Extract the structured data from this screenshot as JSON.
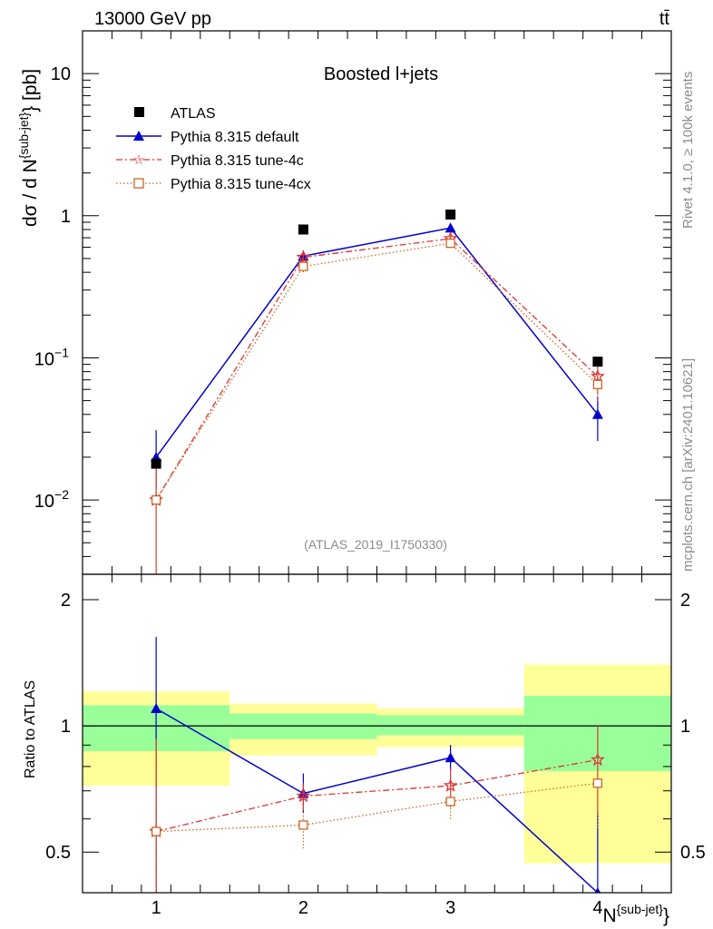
{
  "header": {
    "energy_label": "13000 GeV pp",
    "process_label": "tt̄",
    "rivet_label": "Rivet 4.1.0, ≥ 100k events",
    "mcplots_label": "mcplots.cern.ch [arXiv:2401.10621]"
  },
  "chart_data": {
    "type": "scatter",
    "title": "Boosted l+jets",
    "analysis_label": "(ATLAS_2019_I1750330)",
    "xlabel": "N{sub-jet}",
    "ylabel": "dσ / d N{sub-jet} [pb]",
    "ratio_ylabel": "Ratio to ATLAS",
    "xlim": [
      0.5,
      4.5
    ],
    "ylim": [
      0.003,
      20
    ],
    "ratio_ylim": [
      0.4,
      2.3
    ],
    "x_ticks": [
      "1",
      "2",
      "3",
      "4"
    ],
    "y_ticks": [
      "10^-2",
      "10^-1",
      "1",
      "10"
    ],
    "ratio_ticks": [
      "0.5",
      "1",
      "2"
    ],
    "x": [
      1,
      2,
      3,
      4
    ],
    "data": {
      "name": "ATLAS",
      "values": [
        0.018,
        0.8,
        1.02,
        0.094
      ],
      "band_inner": [
        [
          0.87,
          1.12
        ],
        [
          0.93,
          1.07
        ],
        [
          0.95,
          1.06
        ],
        [
          0.78,
          1.18
        ]
      ],
      "band_outer": [
        [
          0.72,
          1.21
        ],
        [
          0.85,
          1.13
        ],
        [
          0.89,
          1.1
        ],
        [
          0.47,
          1.4
        ]
      ]
    },
    "series": [
      {
        "name": "Pythia 8.315 default",
        "color": "#0000cc",
        "values": [
          0.02,
          0.52,
          0.82,
          0.04
        ],
        "errors": [
          [
            0.012,
            0.031
          ],
          [
            0.47,
            0.57
          ],
          [
            0.76,
            0.88
          ],
          [
            0.026,
            0.054
          ]
        ],
        "ratio": [
          1.1,
          0.69,
          0.84,
          0.4
        ],
        "ratio_errors": [
          [
            0.4,
            1.63
          ],
          [
            0.62,
            0.77
          ],
          [
            0.78,
            0.9
          ],
          [
            0.3,
            0.62
          ]
        ]
      },
      {
        "name": "Pythia 8.315 tune-4c",
        "color": "#dd3333",
        "values": [
          0.01,
          0.51,
          0.69,
          0.074
        ],
        "errors": [
          [
            0.003,
            0.018
          ],
          [
            0.47,
            0.55
          ],
          [
            0.65,
            0.73
          ],
          [
            0.055,
            0.093
          ]
        ],
        "ratio": [
          0.56,
          0.68,
          0.72,
          0.83
        ],
        "ratio_errors": [
          [
            0.4,
            0.93
          ],
          [
            0.63,
            0.73
          ],
          [
            0.64,
            0.79
          ],
          [
            0.62,
            1.0
          ]
        ]
      },
      {
        "name": "Pythia 8.315 tune-4cx",
        "color": "#cc6622",
        "values": [
          0.01,
          0.44,
          0.64,
          0.065
        ],
        "errors": [
          [
            0.003,
            0.018
          ],
          [
            0.4,
            0.48
          ],
          [
            0.6,
            0.68
          ],
          [
            0.05,
            0.08
          ]
        ],
        "ratio": [
          0.56,
          0.58,
          0.66,
          0.73
        ],
        "ratio_errors": [
          [
            0.4,
            0.93
          ],
          [
            0.51,
            0.65
          ],
          [
            0.6,
            0.72
          ],
          [
            0.57,
            0.88
          ]
        ]
      }
    ]
  }
}
